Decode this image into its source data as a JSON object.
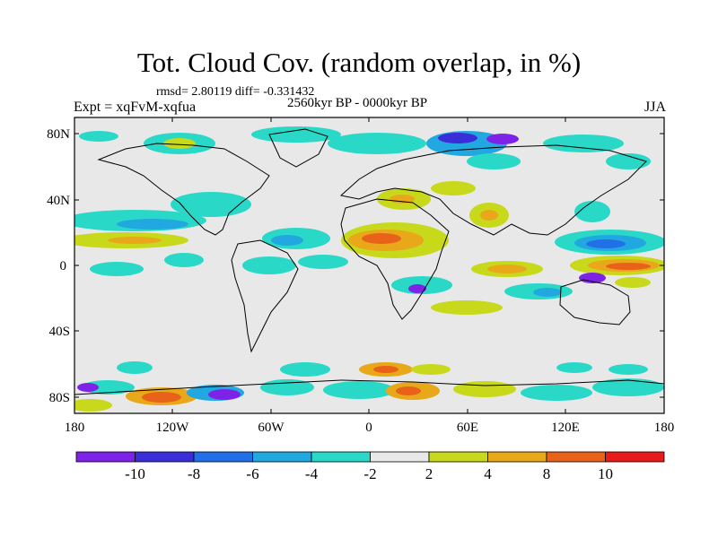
{
  "title": "Tot. Cloud Cov. (random overlap, in %)",
  "stats_line": "rmsd= 2.80119 diff= -0.331432",
  "period": "2560kyr BP - 0000kyr BP",
  "experiment": "Expt = xqFvM-xqfua",
  "season": "JJA",
  "lat_ticks": [
    "80N",
    "40N",
    "0",
    "40S",
    "80S"
  ],
  "lon_ticks": [
    "180",
    "120W",
    "60W",
    "0",
    "60E",
    "120E",
    "180"
  ],
  "colorbar": {
    "labels": [
      "-10",
      "-8",
      "-6",
      "-4",
      "-2",
      "2",
      "4",
      "8",
      "10"
    ],
    "colors": [
      "#7f22e8",
      "#3a2ed8",
      "#2270e8",
      "#22a8e0",
      "#2ad8c8",
      "#e8e8e8",
      "#c8d81a",
      "#e8a81a",
      "#e8621a",
      "#e81a1a"
    ]
  },
  "colors": {
    "land_outline": "#000000",
    "background": "#e8e8e8"
  }
}
